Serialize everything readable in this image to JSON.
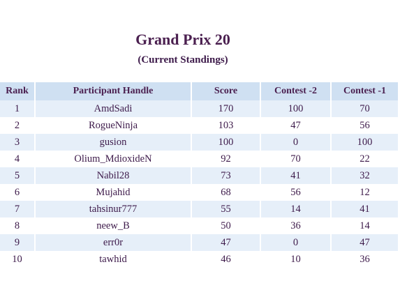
{
  "title": "Grand Prix 20",
  "subtitle": "(Current Standings)",
  "table": {
    "headers": {
      "rank": "Rank",
      "handle": "Participant Handle",
      "score": "Score",
      "contest2": "Contest -2",
      "contest1": "Contest -1"
    },
    "rows": [
      {
        "rank": "1",
        "handle": "AmdSadi",
        "score": "170",
        "contest2": "100",
        "contest1": "70"
      },
      {
        "rank": "2",
        "handle": "RogueNinja",
        "score": "103",
        "contest2": "47",
        "contest1": "56"
      },
      {
        "rank": "3",
        "handle": "gusion",
        "score": "100",
        "contest2": "0",
        "contest1": "100"
      },
      {
        "rank": "4",
        "handle": "Olium_MdioxideN",
        "score": "92",
        "contest2": "70",
        "contest1": "22"
      },
      {
        "rank": "5",
        "handle": "Nabil28",
        "score": "73",
        "contest2": "41",
        "contest1": "32"
      },
      {
        "rank": "6",
        "handle": "Mujahid",
        "score": "68",
        "contest2": "56",
        "contest1": "12"
      },
      {
        "rank": "7",
        "handle": "tahsinur777",
        "score": "55",
        "contest2": "14",
        "contest1": "41"
      },
      {
        "rank": "8",
        "handle": "neew_B",
        "score": "50",
        "contest2": "36",
        "contest1": "14"
      },
      {
        "rank": "9",
        "handle": "err0r",
        "score": "47",
        "contest2": "0",
        "contest1": "47"
      },
      {
        "rank": "10",
        "handle": "tawhid",
        "score": "46",
        "contest2": "10",
        "contest1": "36"
      }
    ]
  }
}
